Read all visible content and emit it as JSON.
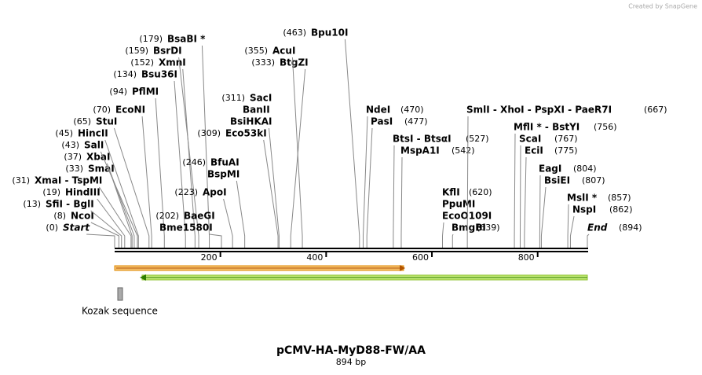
{
  "watermark": "Created by SnapGene",
  "sites": [
    {
      "position": "(0)",
      "names": [
        "Start"
      ]
    },
    {
      "position": "(8)",
      "names": [
        "NcoI"
      ]
    },
    {
      "position": "(13)",
      "names": [
        "SfiI  - BglI"
      ]
    },
    {
      "position": "(19)",
      "names": [
        "HindIII"
      ]
    },
    {
      "position": "(31)",
      "names": [
        "XmaI  - TspMI"
      ]
    },
    {
      "position": "(33)",
      "names": [
        "SmaI"
      ]
    },
    {
      "position": "(37)",
      "names": [
        "XbaI"
      ]
    },
    {
      "position": "(43)",
      "names": [
        "SalI"
      ]
    },
    {
      "position": "(45)",
      "names": [
        "HincII"
      ]
    },
    {
      "position": "(65)",
      "names": [
        "StuI"
      ]
    },
    {
      "position": "(70)",
      "names": [
        "EcoNI"
      ]
    },
    {
      "position": "(94)",
      "names": [
        "PflMI"
      ]
    },
    {
      "position": "(134)",
      "names": [
        "Bsu36I"
      ]
    },
    {
      "position": "(152)",
      "names": [
        "XmnI"
      ]
    },
    {
      "position": "(159)",
      "names": [
        "BsrDI"
      ]
    },
    {
      "position": "(179)",
      "names": [
        "BsaBI *"
      ]
    },
    {
      "position": "(202)",
      "names": [
        "BaeGI",
        "Bme1580I"
      ]
    },
    {
      "position": "(223)",
      "names": [
        "ApoI"
      ]
    },
    {
      "position": "(246)",
      "names": [
        "BfuAI",
        "BspMI"
      ]
    },
    {
      "position": "(311)",
      "names": [
        "SacI",
        "BanII",
        "BsiHKAI"
      ]
    },
    {
      "position": "(309)",
      "names": [
        "Eco53kI"
      ]
    },
    {
      "position": "(333)",
      "names": [
        "BtgZI"
      ]
    },
    {
      "position": "(355)",
      "names": [
        "AcuI"
      ]
    },
    {
      "position": "(463)",
      "names": [
        "Bpu10I"
      ]
    },
    {
      "position": "(470)",
      "names": [
        "NdeI"
      ]
    },
    {
      "position": "(477)",
      "names": [
        "PasI"
      ]
    },
    {
      "position": "(527)",
      "names": [
        "BtsI  - BtsαI"
      ]
    },
    {
      "position": "(542)",
      "names": [
        "MspA1I"
      ]
    },
    {
      "position": "(620)",
      "names": [
        "KflI",
        "PpuMI",
        "EcoO109I"
      ]
    },
    {
      "position": "(639)",
      "names": [
        "BmgBI"
      ]
    },
    {
      "position": "(667)",
      "names": [
        "SmlI  - XhoI  - PspXI  - PaeR7I"
      ]
    },
    {
      "position": "(756)",
      "names": [
        "MflI *  - BstYI"
      ]
    },
    {
      "position": "(767)",
      "names": [
        "ScaI"
      ]
    },
    {
      "position": "(775)",
      "names": [
        "EciI"
      ]
    },
    {
      "position": "(804)",
      "names": [
        "EagI"
      ]
    },
    {
      "position": "(807)",
      "names": [
        "BsiEI"
      ]
    },
    {
      "position": "(857)",
      "names": [
        "MslI *"
      ]
    },
    {
      "position": "(862)",
      "names": [
        "NspI"
      ]
    },
    {
      "position": "(894)",
      "names": [
        "End"
      ]
    }
  ],
  "ruler": {
    "ticks": [
      "200",
      "400",
      "600",
      "800"
    ]
  },
  "features": [
    {
      "label": "Kozak sequence"
    }
  ],
  "footer": {
    "title": "pCMV-HA-MyD88-FW/AA",
    "length": "894 bp"
  }
}
